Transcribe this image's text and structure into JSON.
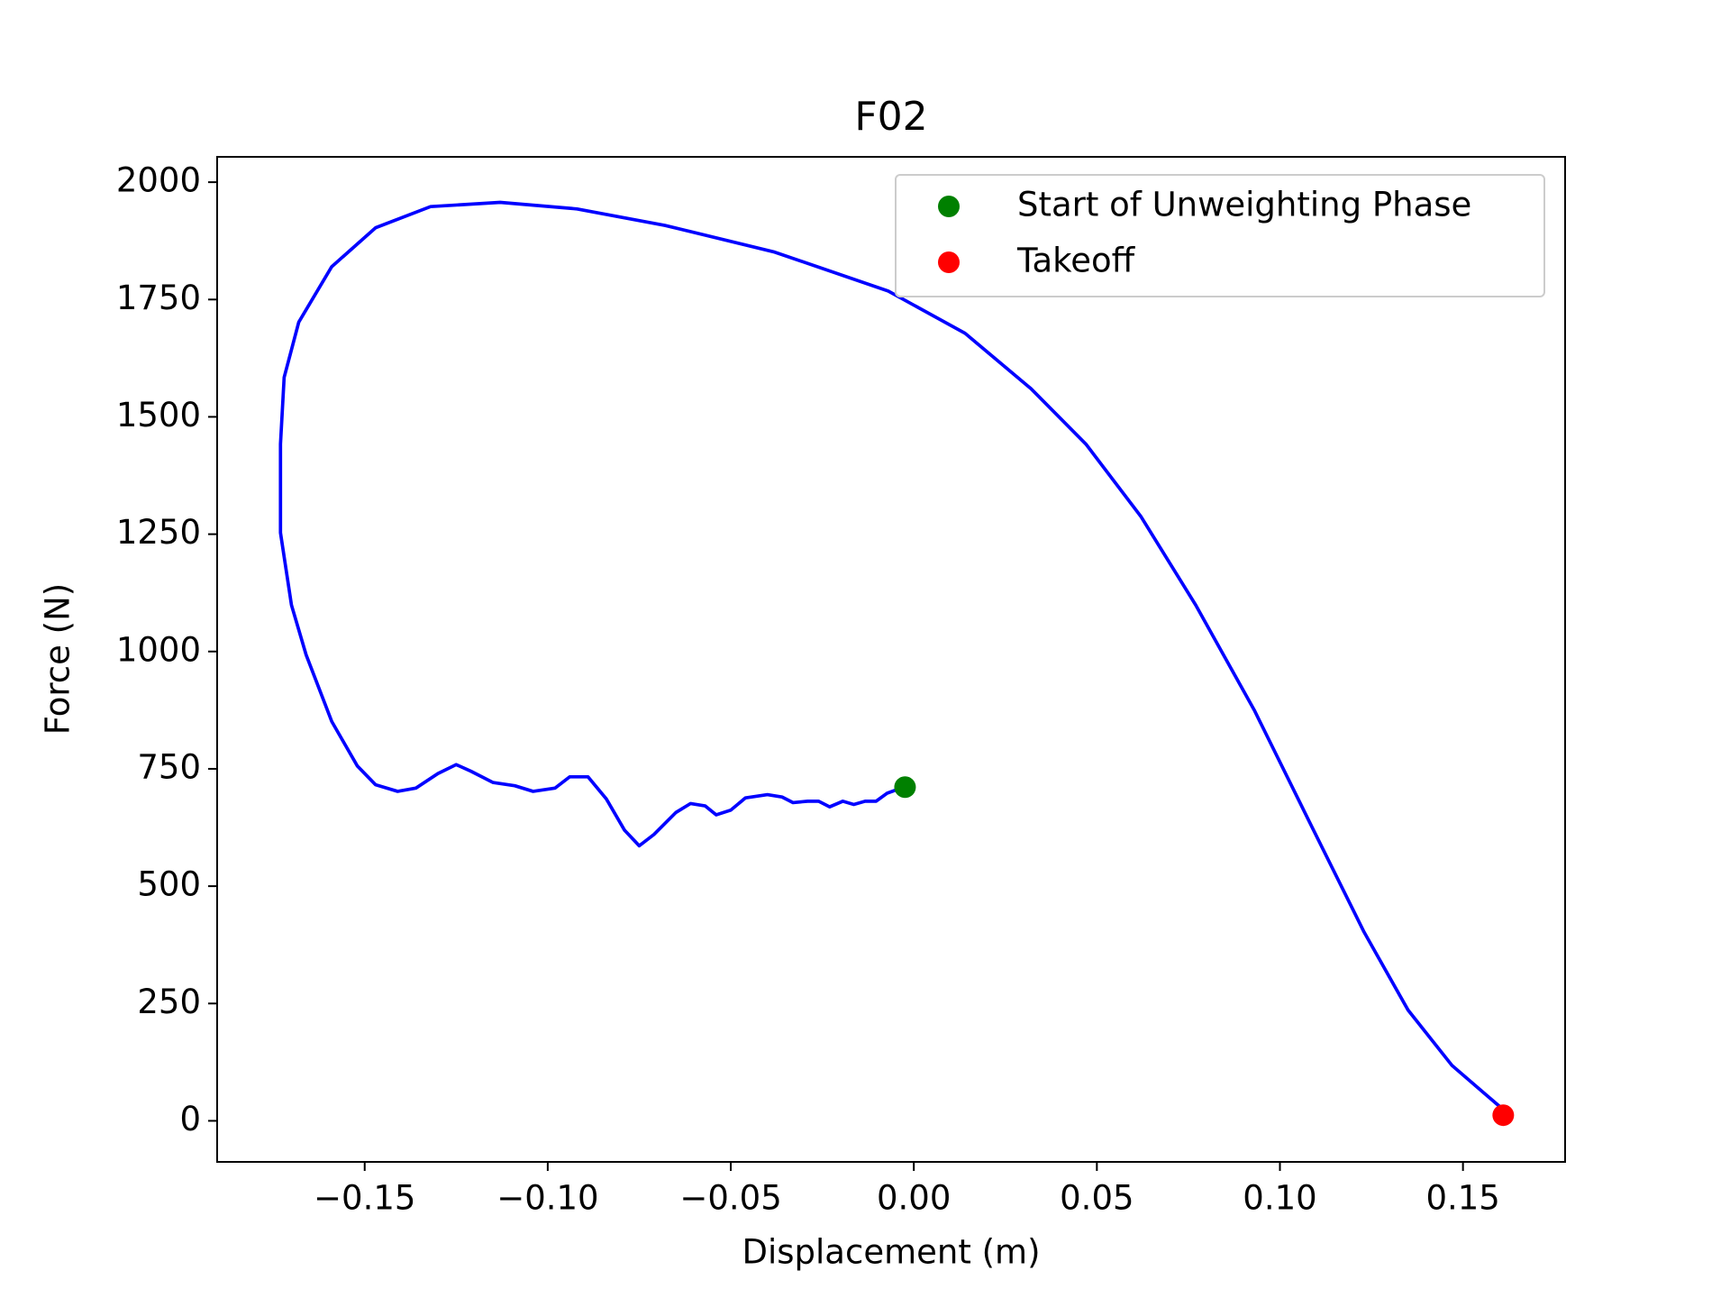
{
  "chart_data": {
    "type": "line",
    "title": "F02",
    "x_label": "Displacement (m)",
    "y_label": "Force (N)",
    "xlim": [
      -0.1903,
      0.1779
    ],
    "ylim": [
      -87.5,
      2054
    ],
    "xticks": [
      {
        "value": -0.15,
        "label": "−0.15"
      },
      {
        "value": -0.1,
        "label": "−0.10"
      },
      {
        "value": -0.05,
        "label": "−0.05"
      },
      {
        "value": 0,
        "label": "0.00"
      },
      0.05,
      {
        "value": 0.1,
        "label": "0.10"
      },
      {
        "value": 0.15,
        "label": "0.15"
      }
    ],
    "yticks": [
      0,
      250,
      500,
      750,
      1000,
      1250,
      1500,
      1750,
      2000
    ],
    "grid": false,
    "legend": "upper right",
    "series": [
      {
        "color": "#0000ff",
        "x": [
          -0.0024,
          -0.0073,
          -0.0103,
          -0.0133,
          -0.0164,
          -0.0194,
          -0.023,
          -0.026,
          -0.029,
          -0.033,
          -0.036,
          -0.04,
          -0.046,
          -0.05,
          -0.054,
          -0.057,
          -0.061,
          -0.065,
          -0.071,
          -0.075,
          -0.079,
          -0.084,
          -0.089,
          -0.094,
          -0.098,
          -0.104,
          -0.109,
          -0.115,
          -0.121,
          -0.125,
          -0.13,
          -0.136,
          -0.141,
          -0.147,
          -0.152,
          -0.159,
          -0.166,
          -0.17,
          -0.173,
          -0.173,
          -0.172,
          -0.168,
          -0.159,
          -0.147,
          -0.132,
          -0.113,
          -0.092,
          -0.068,
          -0.038,
          -0.007,
          0.014,
          0.032,
          0.047,
          0.062,
          0.077,
          0.093,
          0.108,
          0.123,
          0.135,
          0.147,
          0.161,
          0.161
        ],
        "y": [
          712,
          698,
          681,
          681,
          674,
          681,
          669,
          681,
          681,
          678,
          690,
          695,
          688,
          662,
          652,
          671,
          676,
          657,
          610,
          586,
          619,
          686,
          733,
          733,
          709,
          702,
          714,
          721,
          745,
          759,
          740,
          709,
          702,
          716,
          756,
          851,
          993,
          1099,
          1253,
          1442,
          1584,
          1702,
          1820,
          1903,
          1948,
          1957,
          1943,
          1908,
          1851,
          1768,
          1678,
          1560,
          1442,
          1288,
          1099,
          875,
          638,
          402,
          236,
          118,
          24,
          12
        ]
      },
      {
        "name": "Start of Unweighting Phase",
        "color": "#008000",
        "marker": "o",
        "x": [
          -0.0024
        ],
        "y": [
          711
        ]
      },
      {
        "name": "Takeoff",
        "color": "#ff0000",
        "marker": "o",
        "x": [
          0.161
        ],
        "y": [
          12
        ]
      }
    ]
  }
}
